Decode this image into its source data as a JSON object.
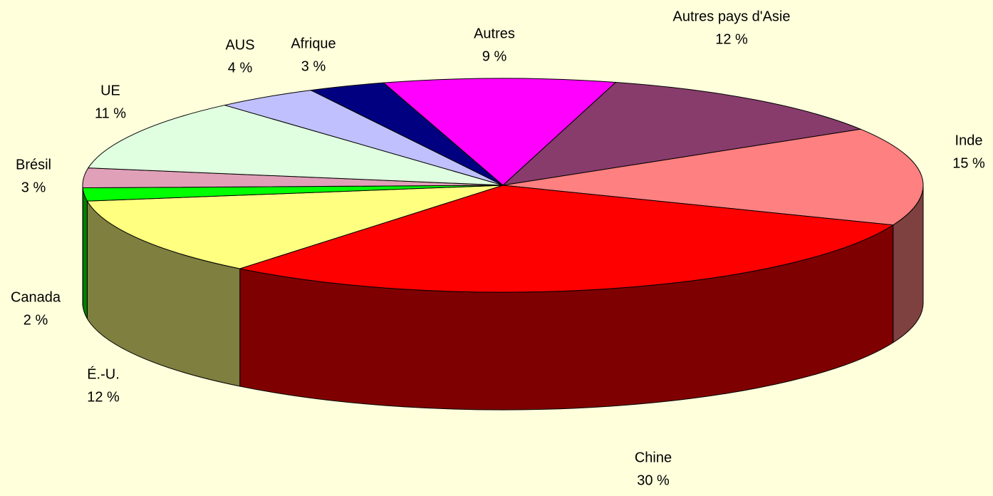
{
  "chart_data": {
    "type": "pie",
    "categories": [
      "Autres",
      "Autres pays d'Asie",
      "Inde",
      "Chine",
      "É.-U.",
      "Canada",
      "Brésil",
      "UE",
      "AUS",
      "Afrique"
    ],
    "values": [
      9,
      12,
      15,
      30,
      12,
      2,
      3,
      11,
      4,
      3
    ],
    "value_labels": [
      "9 %",
      "12 %",
      "15 %",
      "30 %",
      "12 %",
      "2 %",
      "3 %",
      "11 %",
      "4 %",
      "3 %"
    ],
    "colors": [
      "#ff00ff",
      "#883c6c",
      "#ff8080",
      "#ff0000",
      "#ffff80",
      "#00ff00",
      "#e0a0b8",
      "#e0ffe0",
      "#c0c0ff",
      "#000080"
    ]
  }
}
